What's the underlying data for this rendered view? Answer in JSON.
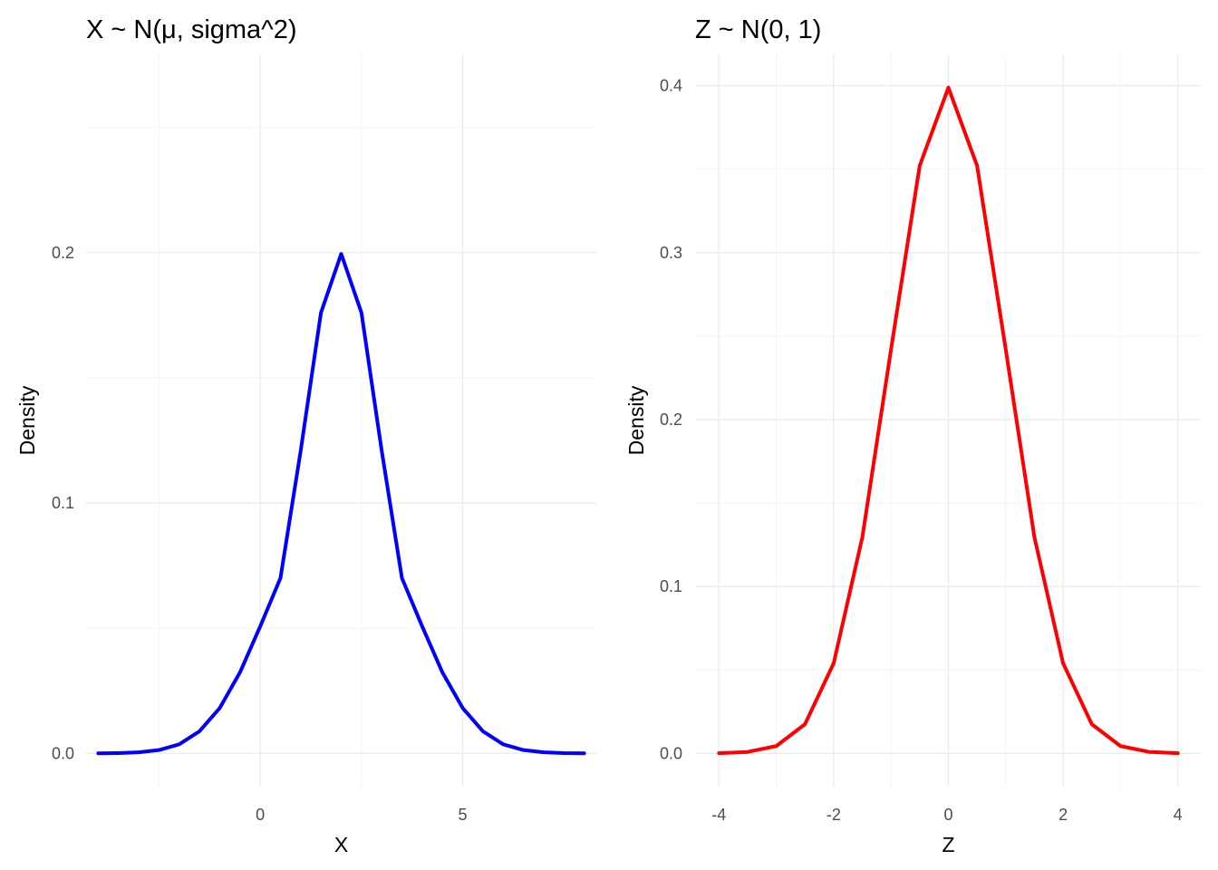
{
  "chart_data": [
    {
      "type": "line",
      "title": "X ~ N(μ, sigma^2)",
      "xlabel": "X",
      "ylabel": "Density",
      "xlim": [
        -4,
        8
      ],
      "ylim": [
        0,
        0.2659
      ],
      "xticks": [
        0,
        5
      ],
      "xtick_labels": [
        "0",
        "5"
      ],
      "xminor": [
        -2.5,
        2.5
      ],
      "yticks": [
        0,
        0.1,
        0.2
      ],
      "ytick_labels": [
        "0.0",
        "0.1",
        "0.2"
      ],
      "yminor": [
        0.05,
        0.15,
        0.25
      ],
      "grid": true,
      "color": "#0000ff",
      "series": [
        {
          "x": [
            -4,
            -3.5,
            -3,
            -2.5,
            -2,
            -1.5,
            -1,
            -0.5,
            0,
            0.5,
            1,
            1.5,
            2,
            2.5,
            3,
            3.5,
            4,
            4.5,
            5,
            5.5,
            6,
            6.5,
            7,
            7.5,
            8
          ],
          "y": [
            0.0,
            0.0001,
            0.0004,
            0.0013,
            0.0036,
            0.0088,
            0.0181,
            0.0323,
            0.0507,
            0.07,
            0.1209,
            0.176,
            0.1995,
            0.176,
            0.1209,
            0.07,
            0.0507,
            0.0323,
            0.0181,
            0.0088,
            0.0036,
            0.0013,
            0.0004,
            0.0001,
            0.0
          ]
        }
      ]
    },
    {
      "type": "line",
      "title": "Z ~ N(0, 1)",
      "xlabel": "Z",
      "ylabel": "Density",
      "xlim": [
        -4,
        4
      ],
      "ylim": [
        0,
        0.3989
      ],
      "xticks": [
        -4,
        -2,
        0,
        2,
        4
      ],
      "xtick_labels": [
        "-4",
        "-2",
        "0",
        "2",
        "4"
      ],
      "xminor": [
        -3,
        -1,
        1,
        3
      ],
      "yticks": [
        0,
        0.1,
        0.2,
        0.3,
        0.4
      ],
      "ytick_labels": [
        "0.0",
        "0.1",
        "0.2",
        "0.3",
        "0.4"
      ],
      "yminor": [
        0.05,
        0.15,
        0.25,
        0.35
      ],
      "grid": true,
      "color": "#ff0000",
      "series": [
        {
          "x": [
            -4,
            -3.5,
            -3,
            -2.5,
            -2,
            -1.5,
            -1,
            -0.5,
            0,
            0.5,
            1,
            1.5,
            2,
            2.5,
            3,
            3.5,
            4
          ],
          "y": [
            0.0001,
            0.0009,
            0.0044,
            0.0175,
            0.054,
            0.1295,
            0.242,
            0.3521,
            0.3989,
            0.3521,
            0.242,
            0.1295,
            0.054,
            0.0175,
            0.0044,
            0.0009,
            0.0001
          ]
        }
      ]
    }
  ]
}
